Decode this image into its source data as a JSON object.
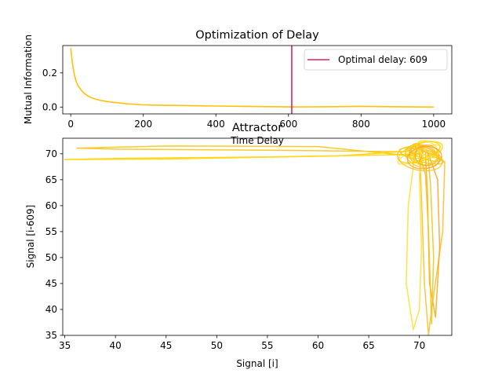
{
  "chart_data": [
    {
      "type": "line",
      "title": "Optimization of Delay",
      "xlabel": "Time Delay",
      "ylabel": "Mutual Information",
      "xlim": [
        -22,
        1050
      ],
      "ylim": [
        -0.04,
        0.36
      ],
      "xticks": [
        "0",
        "200",
        "400",
        "600",
        "800",
        "1000"
      ],
      "yticks": [
        "0.0",
        "0.2"
      ],
      "grid": false,
      "legend_position": "top-right",
      "series": [
        {
          "color": "#ffc107",
          "x": [
            0,
            5,
            10,
            15,
            20,
            30,
            40,
            50,
            60,
            80,
            100,
            150,
            200,
            250,
            300,
            400,
            500,
            600,
            609,
            700,
            800,
            900,
            1000
          ],
          "y": [
            0.345,
            0.25,
            0.19,
            0.15,
            0.125,
            0.095,
            0.075,
            0.062,
            0.052,
            0.04,
            0.032,
            0.02,
            0.013,
            0.01,
            0.009,
            0.006,
            0.003,
            0.001,
            0.0005,
            0.002,
            0.004,
            0.002,
            0.0
          ]
        }
      ],
      "vline": {
        "x": 609,
        "label": "Optimal delay: 609",
        "color": "#e91e63"
      }
    },
    {
      "type": "line",
      "title": "Attractor",
      "xlabel": "Signal [i]",
      "ylabel": "Signal [i-609]",
      "xlim": [
        34.8,
        73.2
      ],
      "ylim": [
        35,
        73
      ],
      "xticks": [
        "35",
        "40",
        "45",
        "50",
        "55",
        "60",
        "65",
        "70"
      ],
      "yticks": [
        "35",
        "40",
        "45",
        "50",
        "55",
        "60",
        "65",
        "70"
      ],
      "grid": false,
      "colors": [
        "#f5c518",
        "#ffd400",
        "#fbc02d",
        "#ffe033",
        "#f9a825"
      ],
      "paths": [
        [
          [
            69.8,
            69.5
          ],
          [
            60,
            71.4
          ],
          [
            45,
            71.5
          ],
          [
            36.2,
            71.1
          ],
          [
            40,
            70.9
          ],
          [
            55,
            70.7
          ],
          [
            68.5,
            70.4
          ]
        ],
        [
          [
            70.2,
            69.9
          ],
          [
            55,
            69.4
          ],
          [
            40,
            69.1
          ],
          [
            35,
            68.9
          ],
          [
            45,
            69.0
          ],
          [
            62,
            69.6
          ],
          [
            69.5,
            70.6
          ]
        ],
        [
          [
            70.1,
            70.8
          ],
          [
            72.5,
            68.5
          ],
          [
            72.3,
            55
          ],
          [
            71.2,
            40
          ],
          [
            70.9,
            35.1
          ],
          [
            70.5,
            45
          ],
          [
            70.2,
            62
          ],
          [
            70.0,
            70.5
          ]
        ],
        [
          [
            69.6,
            70.6
          ],
          [
            68.9,
            60
          ],
          [
            68.7,
            45
          ],
          [
            69.4,
            36.1
          ],
          [
            70.0,
            40
          ],
          [
            70.2,
            52
          ],
          [
            70.0,
            66
          ],
          [
            70.4,
            70.8
          ]
        ],
        [
          [
            70.8,
            70.4
          ],
          [
            71.8,
            65
          ],
          [
            72.0,
            52
          ],
          [
            71.6,
            38.5
          ],
          [
            71.0,
            45
          ],
          [
            70.8,
            62
          ],
          [
            70.6,
            70.2
          ]
        ],
        [
          [
            70.0,
            70.0
          ],
          [
            70.6,
            66
          ],
          [
            70.9,
            55
          ],
          [
            71.2,
            37.2
          ],
          [
            71.4,
            50
          ],
          [
            71.1,
            64
          ],
          [
            70.8,
            70.6
          ]
        ]
      ]
    }
  ]
}
